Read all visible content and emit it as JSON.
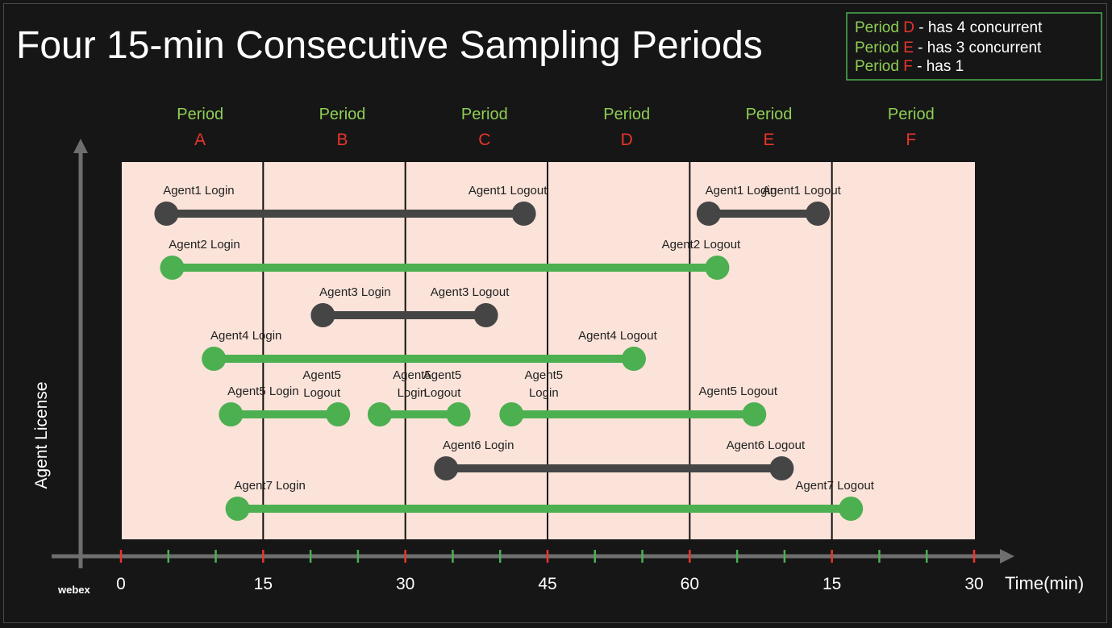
{
  "title": "Four 15-min Consecutive Sampling Periods",
  "colors": {
    "background": "#161616",
    "plot_bg": "#fbe3d9",
    "green": "#4caf50",
    "gray": "#454545",
    "period_label": "#8fce55",
    "period_letter": "#e8352b",
    "tick_red": "#e8352b",
    "tick_green": "#4caf50",
    "axis": "#6e6e6e",
    "text_light": "#ffffff",
    "text_dark": "#222222"
  },
  "legend": [
    {
      "period_word": "Period",
      "letter": "D",
      "rest": "- has 4 concurrent"
    },
    {
      "period_word": "Period",
      "letter": "E",
      "rest": "- has 3 concurrent"
    },
    {
      "period_word": "Period",
      "letter": "F",
      "rest": "- has 1"
    }
  ],
  "periods": [
    {
      "label": "Period",
      "letter": "A"
    },
    {
      "label": "Period",
      "letter": "B"
    },
    {
      "label": "Period",
      "letter": "C"
    },
    {
      "label": "Period",
      "letter": "D"
    },
    {
      "label": "Period",
      "letter": "E"
    },
    {
      "label": "Period",
      "letter": "F"
    }
  ],
  "y_axis_label": "Agent License",
  "x_axis_label": "Time(min)",
  "x_tick_labels": [
    "0",
    "15",
    "30",
    "45",
    "60",
    "15",
    "30"
  ],
  "brand": "webex",
  "chart_data": {
    "type": "timeline",
    "title": "Four 15-min Consecutive Sampling Periods",
    "xlabel": "Time(min)",
    "ylabel": "Agent License",
    "x_range_min": [
      0,
      90
    ],
    "boundaries_min": [
      0,
      15,
      30,
      45,
      60,
      75,
      90
    ],
    "sessions": [
      {
        "agent": "Agent1",
        "row": 0,
        "start_min": 4.8,
        "end_min": 42.5,
        "color": "gray",
        "start_label": "Agent1 Login",
        "end_label": "Agent1 Logout"
      },
      {
        "agent": "Agent1",
        "row": 0,
        "start_min": 62.0,
        "end_min": 73.5,
        "color": "gray",
        "start_label": "Agent1 Login",
        "end_label": "Agent1 Logout"
      },
      {
        "agent": "Agent2",
        "row": 1,
        "start_min": 5.4,
        "end_min": 62.9,
        "color": "green",
        "start_label": "Agent2 Login",
        "end_label": "Agent2 Logout"
      },
      {
        "agent": "Agent3",
        "row": 2,
        "start_min": 21.3,
        "end_min": 38.5,
        "color": "gray",
        "start_label": "Agent3 Login",
        "end_label": "Agent3 Logout"
      },
      {
        "agent": "Agent4",
        "row": 3,
        "start_min": 9.8,
        "end_min": 54.1,
        "color": "green",
        "start_label": "Agent4 Login",
        "end_label": "Agent4 Logout"
      },
      {
        "agent": "Agent5",
        "row": 4,
        "start_min": 11.6,
        "end_min": 22.9,
        "color": "green",
        "start_label": "Agent5 Login",
        "end_label": "Agent5 Logout"
      },
      {
        "agent": "Agent5",
        "row": 4,
        "start_min": 27.3,
        "end_min": 35.6,
        "color": "green",
        "start_label": "Agent5 Login",
        "end_label": "Agent5 Logout"
      },
      {
        "agent": "Agent5",
        "row": 4,
        "start_min": 41.2,
        "end_min": 66.8,
        "color": "green",
        "start_label": "Agent5 Login",
        "end_label": "Agent5 Logout"
      },
      {
        "agent": "Agent6",
        "row": 5,
        "start_min": 34.3,
        "end_min": 69.7,
        "color": "gray",
        "start_label": "Agent6 Login",
        "end_label": "Agent6 Logout"
      },
      {
        "agent": "Agent7",
        "row": 6,
        "start_min": 12.3,
        "end_min": 77.0,
        "color": "green",
        "start_label": "Agent7 Login",
        "end_label": "Agent7 Logout"
      }
    ]
  }
}
